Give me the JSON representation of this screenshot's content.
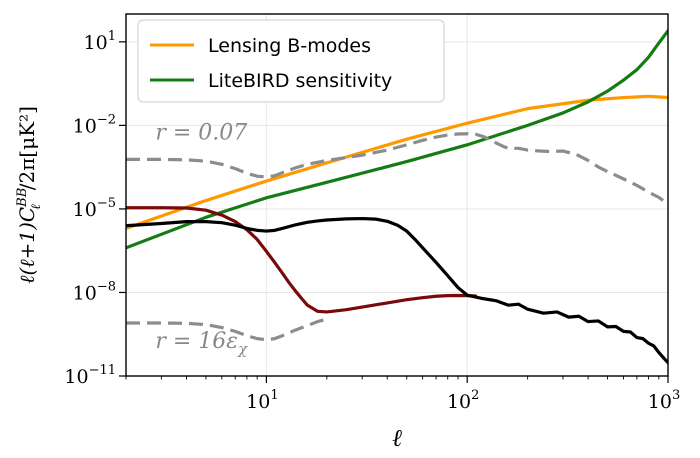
{
  "chart_data": {
    "type": "line",
    "xscale": "log",
    "yscale": "log",
    "xlim": [
      2,
      1000
    ],
    "ylim": [
      1e-11,
      100
    ],
    "xlabel": "ℓ",
    "ylabel": "ℓ(ℓ+1)C_ℓ^BB/2π[μK²]",
    "grid": true,
    "legend_placement": "top-left",
    "x_ticks": [
      {
        "value": 10,
        "base": "10",
        "exp": "1"
      },
      {
        "value": 100,
        "base": "10",
        "exp": "2"
      },
      {
        "value": 1000,
        "base": "10",
        "exp": "3"
      }
    ],
    "y_ticks": [
      {
        "value": 1e-11,
        "base": "10",
        "exp": "−11"
      },
      {
        "value": 1e-08,
        "base": "10",
        "exp": "−8"
      },
      {
        "value": 1e-05,
        "base": "10",
        "exp": "−5"
      },
      {
        "value": 0.01,
        "base": "10",
        "exp": "−2"
      },
      {
        "value": 10,
        "base": "10",
        "exp": "1"
      }
    ],
    "annotations": [
      {
        "text": "r = 0.07",
        "x": 2.8,
        "y": 0.006
      },
      {
        "text": "r = 16ε",
        "sub": "χ",
        "x": 2.8,
        "y": 2e-10
      }
    ],
    "series": [
      {
        "name": "Lensing B-modes",
        "color": "#ff9900",
        "dash": false,
        "in_legend": true,
        "x": [
          2,
          5,
          10,
          20,
          50,
          100,
          200,
          400,
          600,
          800,
          1000
        ],
        "y": [
          2e-06,
          2e-05,
          0.0001,
          0.00045,
          0.0032,
          0.012,
          0.04,
          0.08,
          0.1,
          0.11,
          0.1
        ]
      },
      {
        "name": "LiteBIRD sensitivity",
        "color": "#137d13",
        "dash": false,
        "in_legend": true,
        "x": [
          2,
          5,
          10,
          20,
          50,
          100,
          200,
          300,
          400,
          500,
          600,
          700,
          800,
          900,
          1000
        ],
        "y": [
          4e-07,
          5e-06,
          2.5e-05,
          9e-05,
          0.0005,
          0.002,
          0.01,
          0.028,
          0.07,
          0.17,
          0.42,
          1.0,
          2.8,
          9.0,
          25.0
        ]
      },
      {
        "name": "",
        "color": "#7a0a0a",
        "dash": false,
        "in_legend": false,
        "x": [
          2,
          3,
          4,
          5,
          6,
          7,
          8,
          9,
          10,
          11,
          12,
          13,
          14,
          15,
          16,
          18,
          20,
          25,
          30,
          40,
          50,
          60,
          70,
          80,
          90,
          100,
          110
        ],
        "y": [
          1.1e-05,
          1.1e-05,
          1.08e-05,
          9e-06,
          6e-06,
          3.5e-06,
          1.8e-06,
          8e-07,
          3e-07,
          1.2e-07,
          5e-08,
          2.2e-08,
          1.1e-08,
          6e-09,
          3.5e-09,
          2.1e-09,
          2e-09,
          2.4e-09,
          3e-09,
          4.2e-09,
          5.5e-09,
          6.5e-09,
          7.3e-09,
          7.7e-09,
          7.8e-09,
          7.7e-09,
          7.5e-09
        ]
      },
      {
        "name": "",
        "color": "#000000",
        "dash": false,
        "in_legend": false,
        "x": [
          2,
          3,
          4,
          5,
          6,
          7,
          8,
          9,
          10,
          11,
          12,
          14,
          16,
          18,
          20,
          25,
          30,
          35,
          40,
          45,
          50,
          55,
          60,
          70,
          80,
          90,
          100,
          120,
          140,
          160,
          180,
          200,
          240,
          280,
          320,
          360,
          400,
          450,
          500,
          550,
          600,
          650,
          700,
          750,
          800,
          850,
          900,
          950,
          1000
        ],
        "y": [
          2.5e-06,
          3e-06,
          3.5e-06,
          3.5e-06,
          3.2e-06,
          2.6e-06,
          2e-06,
          1.7e-06,
          1.6e-06,
          1.7e-06,
          2e-06,
          2.7e-06,
          3.3e-06,
          3.7e-06,
          4e-06,
          4.4e-06,
          4.5e-06,
          4.3e-06,
          3.6e-06,
          2.6e-06,
          1.6e-06,
          8e-07,
          4e-07,
          1.2e-07,
          4e-08,
          1.5e-08,
          8e-09,
          6e-09,
          5e-09,
          3.5e-09,
          3.8e-09,
          2.5e-09,
          1.8e-09,
          2e-09,
          1.3e-09,
          1.4e-09,
          9e-10,
          9.5e-10,
          5.8e-10,
          6e-10,
          4e-10,
          3.8e-10,
          2.4e-10,
          2.2e-10,
          1.5e-10,
          1.2e-10,
          7e-11,
          4.5e-11,
          3e-11
        ]
      },
      {
        "name": "",
        "color": "#8c8c8c",
        "dash": true,
        "in_legend": false,
        "x": [
          2,
          3,
          4,
          5,
          6,
          7,
          8,
          9,
          10,
          11,
          12,
          14,
          16,
          20,
          25,
          30,
          40,
          50,
          60,
          70,
          80,
          90,
          100,
          110,
          120,
          130,
          140,
          150,
          160,
          180,
          200,
          230,
          260,
          300,
          350,
          400,
          450,
          500,
          600,
          700,
          800,
          900,
          1000
        ],
        "y": [
          0.0006,
          0.0006,
          0.00058,
          0.00052,
          0.0004,
          0.00028,
          0.00019,
          0.00015,
          0.00014,
          0.000155,
          0.0002,
          0.0003,
          0.0004,
          0.00055,
          0.0007,
          0.00085,
          0.0013,
          0.002,
          0.0029,
          0.0038,
          0.0045,
          0.0049,
          0.005,
          0.0048,
          0.004,
          0.003,
          0.0023,
          0.0018,
          0.0015,
          0.0015,
          0.0013,
          0.0012,
          0.00115,
          0.0012,
          0.0009,
          0.00055,
          0.00032,
          0.00022,
          0.00012,
          7e-05,
          4e-05,
          2.6e-05,
          1.5e-05
        ]
      },
      {
        "name": "",
        "color": "#8c8c8c",
        "dash": true,
        "in_legend": false,
        "x": [
          2,
          3,
          4,
          5,
          6,
          7,
          8,
          9,
          10,
          11,
          12,
          14,
          16,
          18,
          20
        ],
        "y": [
          8e-10,
          8e-10,
          7.8e-10,
          7e-10,
          5.5e-10,
          4e-10,
          2.8e-10,
          2.2e-10,
          2e-10,
          2.2e-10,
          2.8e-10,
          4.5e-10,
          6.5e-10,
          9e-10,
          1.1e-09
        ]
      }
    ]
  }
}
